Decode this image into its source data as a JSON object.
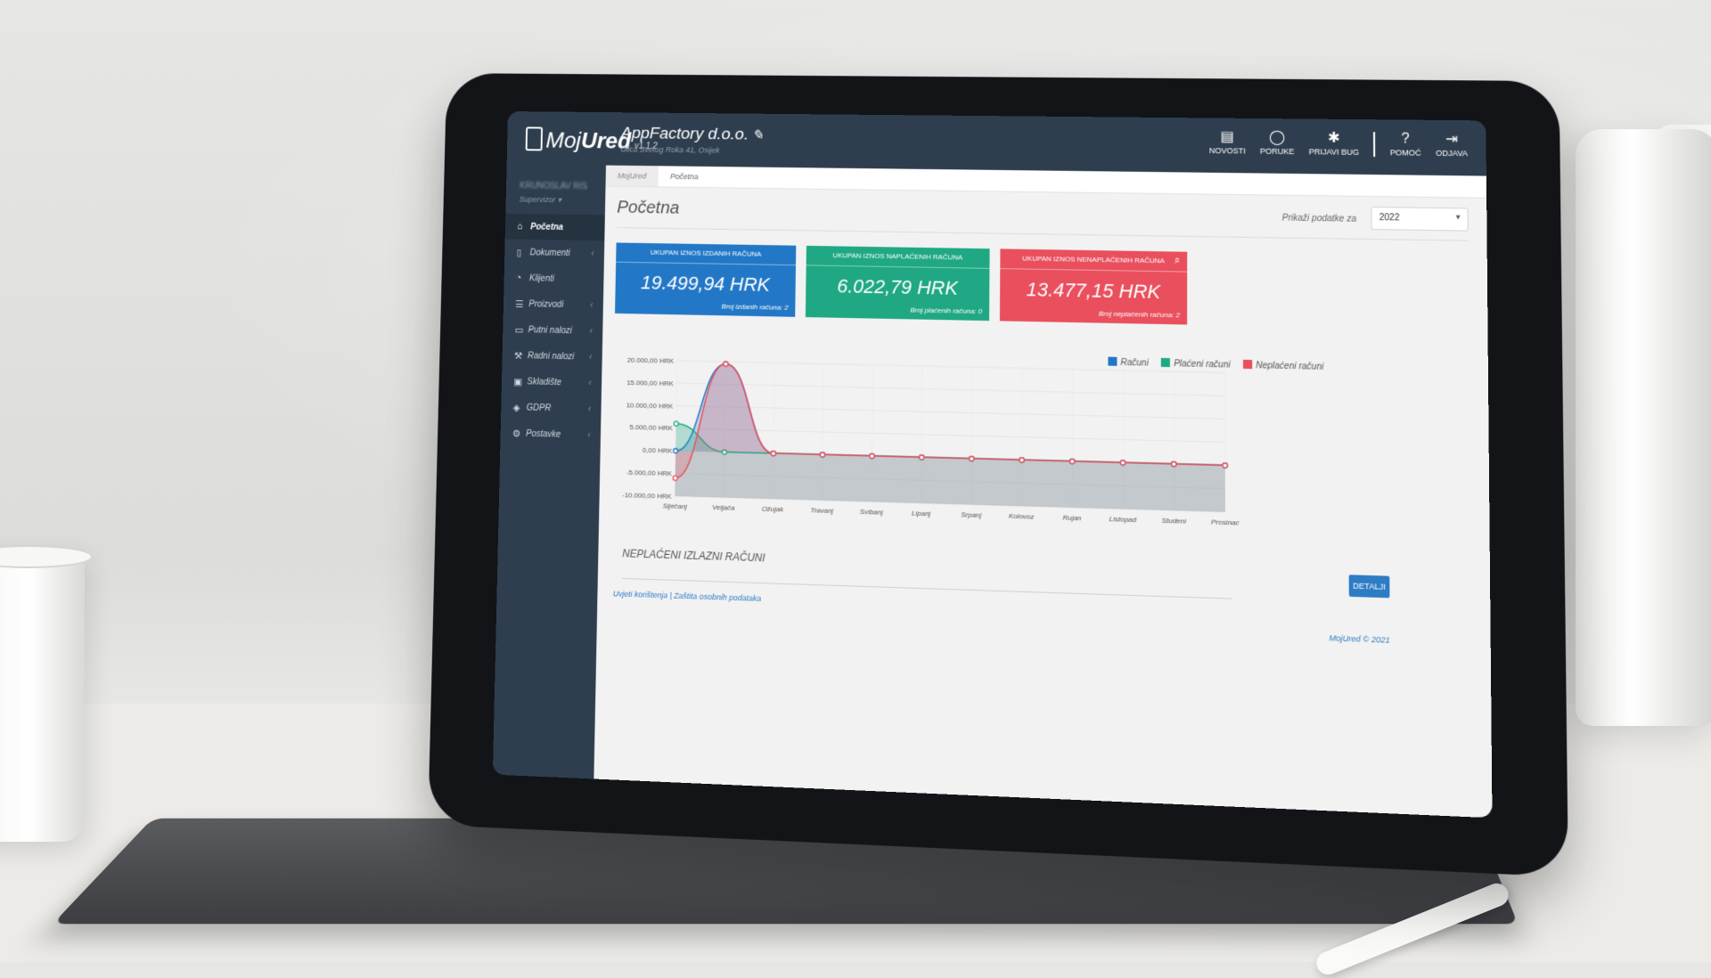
{
  "app": {
    "logo_light": "Moj",
    "logo_bold": "Ured",
    "version": "v1.1.2"
  },
  "company": {
    "name": "AppFactory d.o.o.",
    "address": "Ulica Svetog Roka 41, Osijek"
  },
  "topnav": [
    {
      "label": "NOVOSTI",
      "icon": "newspaper-icon"
    },
    {
      "label": "PORUKE",
      "icon": "chat-icon"
    },
    {
      "label": "PRIJAVI BUG",
      "icon": "bug-icon"
    },
    {
      "label": "POMOĆ",
      "icon": "help-icon"
    },
    {
      "label": "ODJAVA",
      "icon": "logout-icon"
    }
  ],
  "user": {
    "name": "KRUNOSLAV RIS",
    "role": "Supervizor ▾"
  },
  "sidebar": [
    {
      "label": "Početna",
      "icon": "home-icon",
      "active": true
    },
    {
      "label": "Dokumenti",
      "icon": "document-icon"
    },
    {
      "label": "Klijenti",
      "icon": "user-icon"
    },
    {
      "label": "Proizvodi",
      "icon": "list-icon"
    },
    {
      "label": "Putni nalozi",
      "icon": "car-icon"
    },
    {
      "label": "Radni nalozi",
      "icon": "wrench-icon"
    },
    {
      "label": "Skladište",
      "icon": "cubes-icon"
    },
    {
      "label": "GDPR",
      "icon": "shield-icon"
    },
    {
      "label": "Postavke",
      "icon": "gears-icon"
    }
  ],
  "breadcrumb": {
    "home": "MojUred",
    "current": "Početna"
  },
  "page": {
    "title": "Početna",
    "filter_label": "Prikaži podatke za",
    "year": "2022"
  },
  "cards": [
    {
      "title": "UKUPAN IZNOS IZDANIH RAČUNA",
      "value": "19.499,94 HRK",
      "count": "Broj izdanih računa: 2",
      "color": "#2278c7"
    },
    {
      "title": "UKUPAN IZNOS NAPLAĆENIH RAČUNA",
      "value": "6.022,79 HRK",
      "count": "Broj plaćenih računa: 0",
      "color": "#1fa883"
    },
    {
      "title": "UKUPAN IZNOS NENAPLAĆENIH RAČUNA",
      "value": "13.477,15 HRK",
      "count": "Broj neplaćenih računa: 2",
      "color": "#e94f5d"
    }
  ],
  "chart_data": {
    "type": "area",
    "categories": [
      "Siječanj",
      "Veljača",
      "Ožujak",
      "Travanj",
      "Svibanj",
      "Lipanj",
      "Srpanj",
      "Kolovoz",
      "Rujan",
      "Listopad",
      "Studeni",
      "Prosinac"
    ],
    "series": [
      {
        "name": "Računi",
        "color": "#2278c7",
        "values": [
          0,
          19499.94,
          0,
          0,
          0,
          0,
          0,
          0,
          0,
          0,
          0,
          0
        ]
      },
      {
        "name": "Plaćeni računi",
        "color": "#1fa883",
        "values": [
          6022.79,
          0,
          0,
          0,
          0,
          0,
          0,
          0,
          0,
          0,
          0,
          0
        ]
      },
      {
        "name": "Neplaćeni računi",
        "color": "#e94f5d",
        "values": [
          -6022.79,
          19499.94,
          0,
          0,
          0,
          0,
          0,
          0,
          0,
          0,
          0,
          0
        ]
      }
    ],
    "y_ticks": [
      "20.000,00 HRK",
      "15.000,00 HRK",
      "10.000,00 HRK",
      "5.000,00 HRK",
      "0,00 HRK",
      "-5.000,00 HRK",
      "-10.000,00 HRK"
    ],
    "ylim": [
      -10000,
      20000
    ],
    "legend_position": "top-right",
    "grid": true
  },
  "section": {
    "title": "NEPLAĆENI IZLAZNI RAČUNI",
    "details_button": "DETALJI"
  },
  "footer": {
    "links": "Uvjeti korištenja | Zaštita osobnih podataka",
    "copyright": "MojUred © 2021"
  }
}
